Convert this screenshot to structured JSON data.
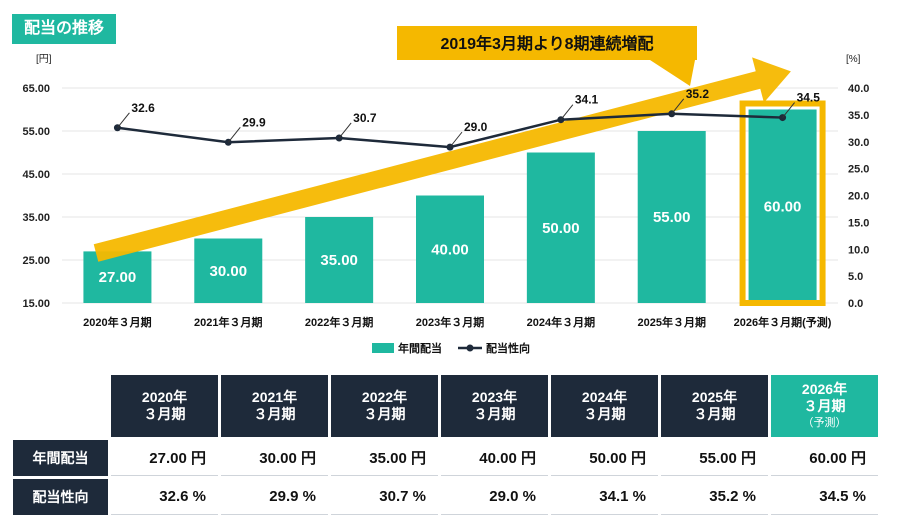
{
  "page": {
    "title": "配当の推移"
  },
  "banner": {
    "text": "2019年3月期より8期連続増配"
  },
  "colors": {
    "bar": "#1fb8a0",
    "line": "#1e2a3a",
    "arrow": "#f5b800",
    "highlight": "#f5b800",
    "header": "#1e2a3a"
  },
  "chart_data": {
    "type": "bar",
    "categories": [
      "2020年３月期",
      "2021年３月期",
      "2022年３月期",
      "2023年３月期",
      "2024年３月期",
      "2025年３月期",
      "2026年３月期(予測)"
    ],
    "series": [
      {
        "name": "年間配当",
        "type": "bar",
        "axis": "left",
        "values": [
          27.0,
          30.0,
          35.0,
          40.0,
          50.0,
          55.0,
          60.0
        ],
        "labels": [
          "27.00",
          "30.00",
          "35.00",
          "40.00",
          "50.00",
          "55.00",
          "60.00"
        ]
      },
      {
        "name": "配当性向",
        "type": "line",
        "axis": "right",
        "values": [
          32.6,
          29.9,
          30.7,
          29.0,
          34.1,
          35.2,
          34.5
        ],
        "labels": [
          "32.6",
          "29.9",
          "30.7",
          "29.0",
          "34.1",
          "35.2",
          "34.5"
        ]
      }
    ],
    "left_axis": {
      "unit": "[円]",
      "min": 15,
      "max": 65,
      "ticks": [
        "15.00",
        "25.00",
        "35.00",
        "45.00",
        "55.00",
        "65.00"
      ]
    },
    "right_axis": {
      "unit": "[%]",
      "min": 0,
      "max": 40,
      "ticks": [
        "0.0",
        "5.0",
        "10.0",
        "15.0",
        "20.0",
        "25.0",
        "30.0",
        "35.0",
        "40.0"
      ]
    },
    "highlight_category": "2026年３月期(予測)",
    "legend": [
      "年間配当",
      "配当性向"
    ],
    "legend_position": "bottom"
  },
  "table": {
    "headers": [
      {
        "line1": "2020年",
        "line2": "３月期",
        "sub": ""
      },
      {
        "line1": "2021年",
        "line2": "３月期",
        "sub": ""
      },
      {
        "line1": "2022年",
        "line2": "３月期",
        "sub": ""
      },
      {
        "line1": "2023年",
        "line2": "３月期",
        "sub": ""
      },
      {
        "line1": "2024年",
        "line2": "３月期",
        "sub": ""
      },
      {
        "line1": "2025年",
        "line2": "３月期",
        "sub": ""
      },
      {
        "line1": "2026年",
        "line2": "３月期",
        "sub": "（予測）"
      }
    ],
    "rows": [
      {
        "label": "年間配当",
        "values": [
          "27.00 円",
          "30.00 円",
          "35.00 円",
          "40.00 円",
          "50.00 円",
          "55.00 円",
          "60.00 円"
        ]
      },
      {
        "label": "配当性向",
        "values": [
          "32.6 %",
          "29.9 %",
          "30.7 %",
          "29.0 %",
          "34.1 %",
          "35.2 %",
          "34.5 %"
        ]
      }
    ]
  }
}
